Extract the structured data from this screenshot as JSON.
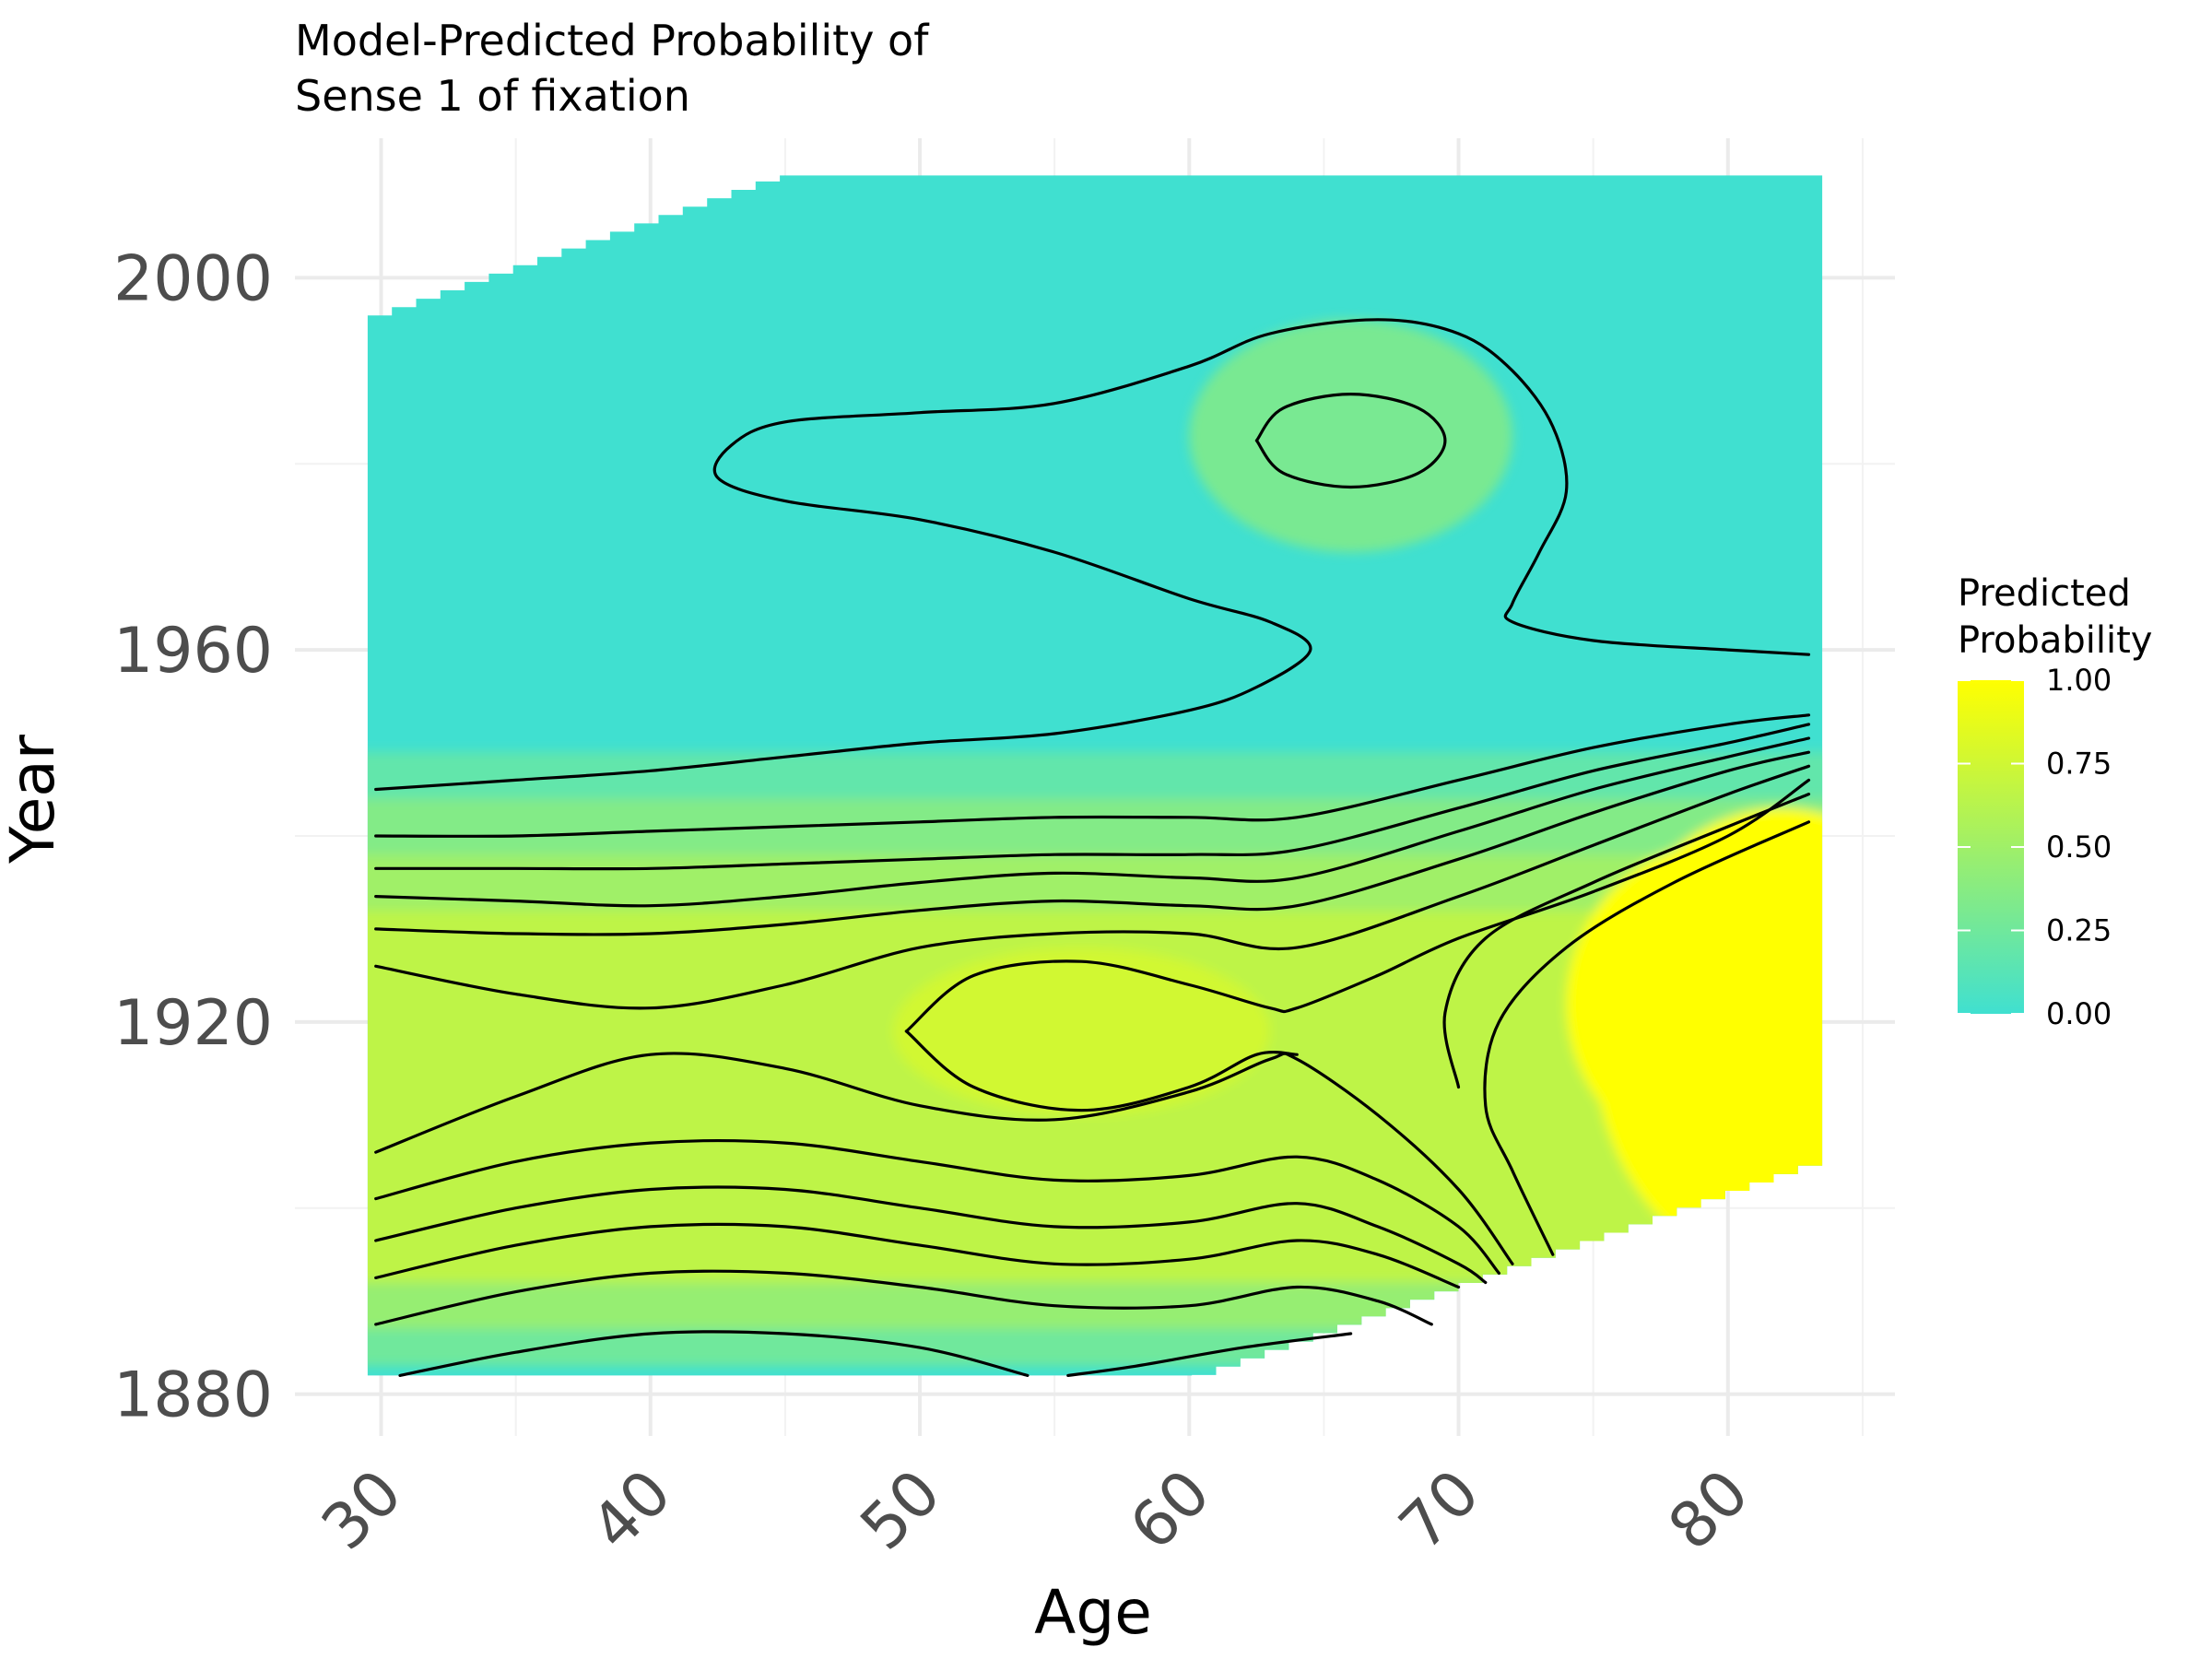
{
  "chart_data": {
    "type": "heatmap",
    "title": [
      "Model-Predicted Probability of",
      "Sense 1 of fixation"
    ],
    "xlabel": "Age",
    "ylabel": "Year",
    "xlim": [
      26.8,
      86.2
    ],
    "ylim": [
      1875.5,
      2015
    ],
    "x_ticks": [
      30,
      40,
      50,
      60,
      70,
      80
    ],
    "y_ticks": [
      1880,
      1920,
      1960,
      2000
    ],
    "x_minor": [
      35,
      45,
      55,
      65,
      75,
      85
    ],
    "y_minor": [
      1900,
      1940,
      1980
    ],
    "grid": true,
    "legend": {
      "title": [
        "Predicted",
        "Probability"
      ],
      "position": "right",
      "ticks": [
        "0.00",
        "0.25",
        "0.50",
        "0.75",
        "1.00"
      ],
      "colors": [
        "#40e0d0",
        "#ffff00"
      ]
    },
    "region": {
      "age_range": [
        29.5,
        83.5
      ],
      "upper_edge": [
        [
          29.5,
          1995.5
        ],
        [
          45,
          2011
        ],
        [
          83.5,
          2011
        ]
      ],
      "lower_edge": [
        [
          29.5,
          1882
        ],
        [
          60.5,
          1882
        ],
        [
          83.5,
          1905
        ]
      ]
    },
    "surface_peaks": [
      {
        "age": 82,
        "year": 1918,
        "probability": 1.0
      },
      {
        "age": 56,
        "year": 1919,
        "probability": 0.76
      },
      {
        "age": 66,
        "year": 1983,
        "probability": 0.3
      }
    ],
    "contours": [
      [
        [
          30.7,
          1882
        ],
        [
          35,
          1884.5
        ],
        [
          40,
          1886.5
        ],
        [
          45,
          1886.5
        ],
        [
          50,
          1885
        ],
        [
          54,
          1882
        ]
      ],
      [
        [
          55.5,
          1882
        ],
        [
          58,
          1883
        ],
        [
          62,
          1885
        ],
        [
          66,
          1886.5
        ]
      ],
      [
        [
          29.8,
          1887.5
        ],
        [
          35,
          1891
        ],
        [
          40,
          1893
        ],
        [
          45,
          1893
        ],
        [
          50,
          1891.5
        ],
        [
          55,
          1889.5
        ],
        [
          60,
          1889.5
        ],
        [
          64,
          1891.5
        ],
        [
          67,
          1890
        ],
        [
          69,
          1887.5
        ]
      ],
      [
        [
          29.8,
          1892.5
        ],
        [
          35,
          1896
        ],
        [
          40,
          1898
        ],
        [
          45,
          1898
        ],
        [
          50,
          1896
        ],
        [
          55,
          1894
        ],
        [
          60,
          1894.5
        ],
        [
          64,
          1896.5
        ],
        [
          67,
          1895
        ],
        [
          70,
          1891.5
        ]
      ],
      [
        [
          29.8,
          1896.5
        ],
        [
          35,
          1900
        ],
        [
          40,
          1902
        ],
        [
          45,
          1902
        ],
        [
          50,
          1900
        ],
        [
          55,
          1898
        ],
        [
          60,
          1898.5
        ],
        [
          64,
          1900.5
        ],
        [
          67,
          1898
        ],
        [
          70,
          1894
        ],
        [
          71,
          1892
        ]
      ],
      [
        [
          29.8,
          1901
        ],
        [
          35,
          1905
        ],
        [
          40,
          1907
        ],
        [
          45,
          1907
        ],
        [
          50,
          1905
        ],
        [
          55,
          1903
        ],
        [
          60,
          1903.5
        ],
        [
          64,
          1905.5
        ],
        [
          67,
          1903
        ],
        [
          70,
          1898
        ],
        [
          71.5,
          1893
        ]
      ],
      [
        [
          29.8,
          1906
        ],
        [
          35,
          1912
        ],
        [
          40,
          1916.5
        ],
        [
          45,
          1915
        ],
        [
          50,
          1911
        ],
        [
          55,
          1909.5
        ],
        [
          60,
          1912.5
        ],
        [
          63,
          1916
        ],
        [
          64,
          1916
        ],
        [
          67,
          1910
        ],
        [
          70,
          1902
        ],
        [
          72,
          1894
        ]
      ],
      [
        [
          73.5,
          1895
        ],
        [
          72,
          1904
        ],
        [
          71,
          1911
        ],
        [
          71.5,
          1920
        ],
        [
          74,
          1928
        ],
        [
          78,
          1935
        ],
        [
          83,
          1941.5
        ]
      ],
      [
        [
          70,
          1913
        ],
        [
          69.5,
          1921
        ],
        [
          71,
          1929
        ],
        [
          75,
          1935
        ],
        [
          80,
          1941
        ],
        [
          83,
          1944.5
        ]
      ],
      [
        [
          49.5,
          1919
        ],
        [
          52,
          1925
        ],
        [
          56,
          1926.5
        ],
        [
          60,
          1924
        ],
        [
          63,
          1921.5
        ],
        [
          64,
          1921.5
        ],
        [
          67,
          1925
        ],
        [
          70,
          1929
        ],
        [
          75,
          1934
        ],
        [
          80,
          1940
        ],
        [
          83,
          1946
        ]
      ],
      [
        [
          49.5,
          1919
        ],
        [
          52,
          1913
        ],
        [
          56,
          1910.5
        ],
        [
          60,
          1913
        ],
        [
          62.5,
          1916.5
        ],
        [
          64,
          1916.5
        ]
      ],
      [
        [
          29.8,
          1926
        ],
        [
          35,
          1923
        ],
        [
          40,
          1921.5
        ],
        [
          45,
          1924
        ],
        [
          50,
          1928
        ],
        [
          55,
          1929.5
        ],
        [
          60,
          1929.5
        ],
        [
          64,
          1928
        ],
        [
          70,
          1933.5
        ],
        [
          75,
          1939
        ],
        [
          80,
          1944.5
        ],
        [
          83,
          1947.5
        ]
      ],
      [
        [
          29.8,
          1930
        ],
        [
          35,
          1929.5
        ],
        [
          40,
          1929.5
        ],
        [
          45,
          1930.5
        ],
        [
          50,
          1932
        ],
        [
          55,
          1933
        ],
        [
          60,
          1932.5
        ],
        [
          64,
          1932.5
        ],
        [
          70,
          1937.5
        ],
        [
          75,
          1942.5
        ],
        [
          80,
          1947
        ],
        [
          83,
          1949
        ]
      ],
      [
        [
          29.8,
          1933.5
        ],
        [
          35,
          1933
        ],
        [
          40,
          1932.5
        ],
        [
          45,
          1933.5
        ],
        [
          50,
          1935
        ],
        [
          55,
          1936
        ],
        [
          60,
          1935.5
        ],
        [
          64,
          1935.5
        ],
        [
          70,
          1940.5
        ],
        [
          75,
          1945
        ],
        [
          80,
          1948.5
        ],
        [
          83,
          1950.5
        ]
      ],
      [
        [
          29.8,
          1936.5
        ],
        [
          35,
          1936.5
        ],
        [
          40,
          1936.5
        ],
        [
          45,
          1937
        ],
        [
          50,
          1937.5
        ],
        [
          55,
          1938
        ],
        [
          60,
          1938
        ],
        [
          64,
          1938.5
        ],
        [
          70,
          1943
        ],
        [
          75,
          1947
        ],
        [
          80,
          1950
        ],
        [
          83,
          1952
        ]
      ],
      [
        [
          29.8,
          1940
        ],
        [
          35,
          1940
        ],
        [
          40,
          1940.5
        ],
        [
          45,
          1941
        ],
        [
          50,
          1941.5
        ],
        [
          55,
          1942
        ],
        [
          60,
          1942
        ],
        [
          64,
          1942
        ],
        [
          70,
          1946
        ],
        [
          75,
          1949.5
        ],
        [
          80,
          1952
        ],
        [
          83,
          1953
        ]
      ],
      [
        [
          29.8,
          1945
        ],
        [
          35,
          1946
        ],
        [
          40,
          1947
        ],
        [
          45,
          1948.5
        ],
        [
          50,
          1950
        ],
        [
          55,
          1951
        ],
        [
          60,
          1953.5
        ],
        [
          62.5,
          1956
        ],
        [
          64.5,
          1960
        ],
        [
          63,
          1963
        ],
        [
          60,
          1965.5
        ],
        [
          55,
          1970.5
        ],
        [
          50,
          1974
        ],
        [
          45,
          1976
        ],
        [
          42.5,
          1978.5
        ],
        [
          43,
          1982
        ],
        [
          45,
          1984.5
        ],
        [
          50,
          1985.5
        ],
        [
          55,
          1986.5
        ],
        [
          60,
          1990.5
        ],
        [
          63,
          1994
        ],
        [
          67,
          1995.5
        ],
        [
          70,
          1994
        ],
        [
          72,
          1990
        ],
        [
          73.5,
          1984
        ],
        [
          74,
          1977
        ],
        [
          73,
          1970.5
        ],
        [
          72,
          1965
        ],
        [
          72,
          1963
        ],
        [
          75,
          1961
        ],
        [
          80,
          1960
        ],
        [
          83,
          1959.5
        ]
      ],
      [
        [
          62.5,
          1982.5
        ],
        [
          63.5,
          1986
        ],
        [
          66,
          1987.5
        ],
        [
          68.5,
          1986
        ],
        [
          69.5,
          1982.5
        ],
        [
          68.5,
          1979
        ],
        [
          66,
          1977.5
        ],
        [
          63.5,
          1979
        ],
        [
          62.5,
          1982.5
        ]
      ]
    ]
  }
}
